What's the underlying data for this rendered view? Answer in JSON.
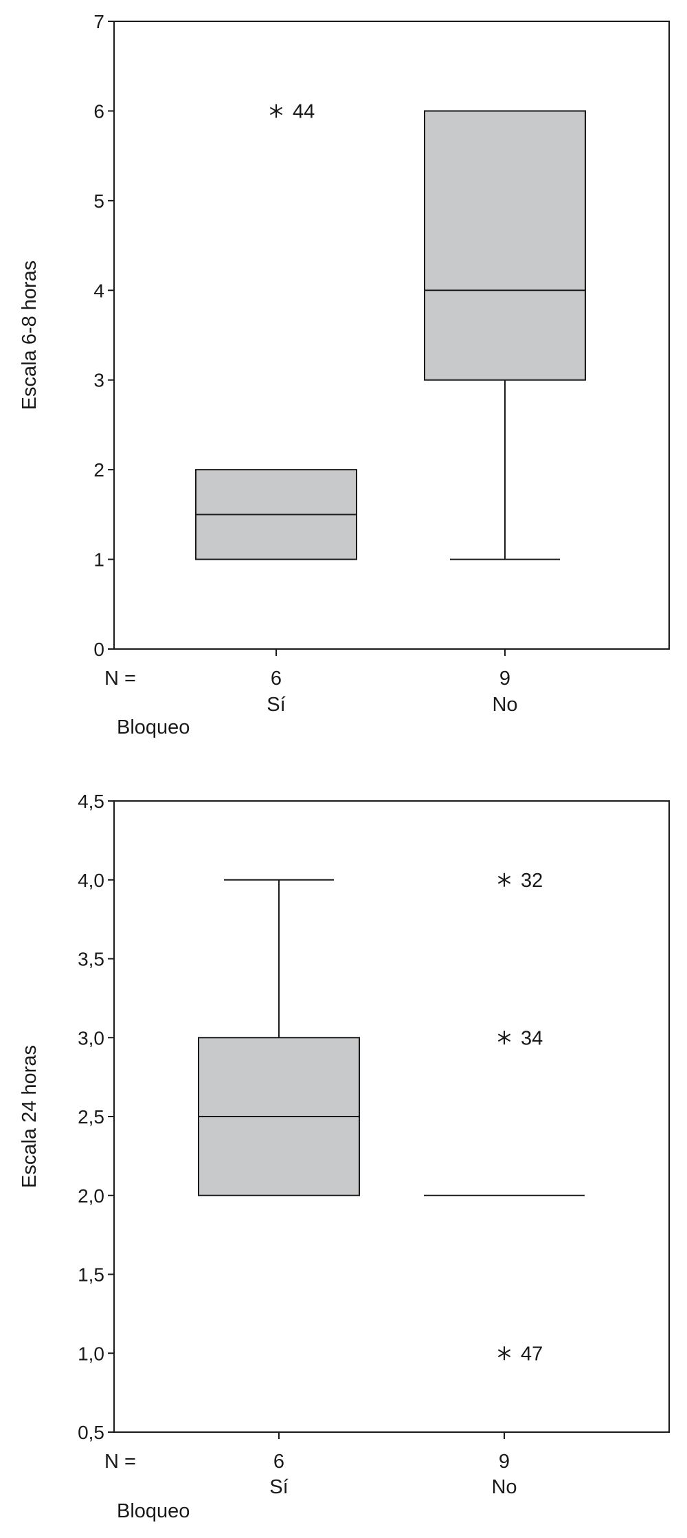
{
  "chart_data": [
    {
      "type": "boxplot",
      "ylabel": "Escala 6-8 horas",
      "xlabel": "Bloqueo",
      "n_label": "N =",
      "ylim": [
        0,
        7
      ],
      "yticks": [
        0,
        1,
        2,
        3,
        4,
        5,
        6,
        7
      ],
      "ytick_labels": [
        "0",
        "1",
        "2",
        "3",
        "4",
        "5",
        "6",
        "7"
      ],
      "colors": {
        "box_fill": "#c8c9cb",
        "stroke": "#1a1a1a"
      },
      "groups": [
        {
          "category": "Sí",
          "n": "6",
          "min": 1,
          "q1": 1,
          "median": 1.5,
          "q3": 2,
          "max": 2,
          "outliers": [
            {
              "value": 6,
              "label": "44"
            }
          ]
        },
        {
          "category": "No",
          "n": "9",
          "min": 1,
          "q1": 3,
          "median": 4,
          "q3": 6,
          "max": 6,
          "outliers": []
        }
      ]
    },
    {
      "type": "boxplot",
      "ylabel": "Escala 24 horas",
      "xlabel": "Bloqueo",
      "n_label": "N =",
      "ylim": [
        0.5,
        4.5
      ],
      "yticks": [
        0.5,
        1.0,
        1.5,
        2.0,
        2.5,
        3.0,
        3.5,
        4.0,
        4.5
      ],
      "ytick_labels": [
        "0,5",
        "1,0",
        "1,5",
        "2,0",
        "2,5",
        "3,0",
        "3,5",
        "4,0",
        "4,5"
      ],
      "colors": {
        "box_fill": "#c8c9cb",
        "stroke": "#1a1a1a"
      },
      "groups": [
        {
          "category": "Sí",
          "n": "6",
          "min": 2,
          "q1": 2,
          "median": 2.5,
          "q3": 3,
          "max": 4,
          "outliers": []
        },
        {
          "category": "No",
          "n": "9",
          "min": 2,
          "q1": 2,
          "median": 2,
          "q3": 2,
          "max": 2,
          "outliers": [
            {
              "value": 4,
              "label": "32"
            },
            {
              "value": 3,
              "label": "34"
            },
            {
              "value": 1,
              "label": "47"
            }
          ]
        }
      ]
    }
  ]
}
